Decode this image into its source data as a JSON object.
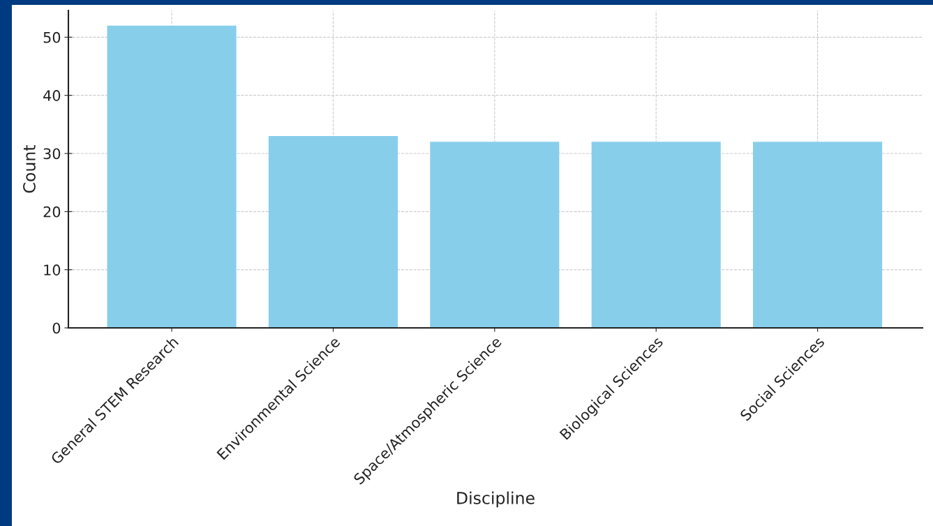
{
  "chart_data": {
    "type": "bar",
    "xlabel": "Discipline",
    "ylabel": "Count",
    "categories": [
      "General STEM Research",
      "Environmental Science",
      "Space/Atmospheric Science",
      "Biological Sciences",
      "Social Sciences"
    ],
    "values": [
      52,
      33,
      32,
      32,
      32
    ],
    "color": "#87ceeb",
    "ylim": [
      0,
      54.6
    ],
    "yticks": [
      0,
      10,
      20,
      30,
      40,
      50
    ],
    "grid": true
  }
}
